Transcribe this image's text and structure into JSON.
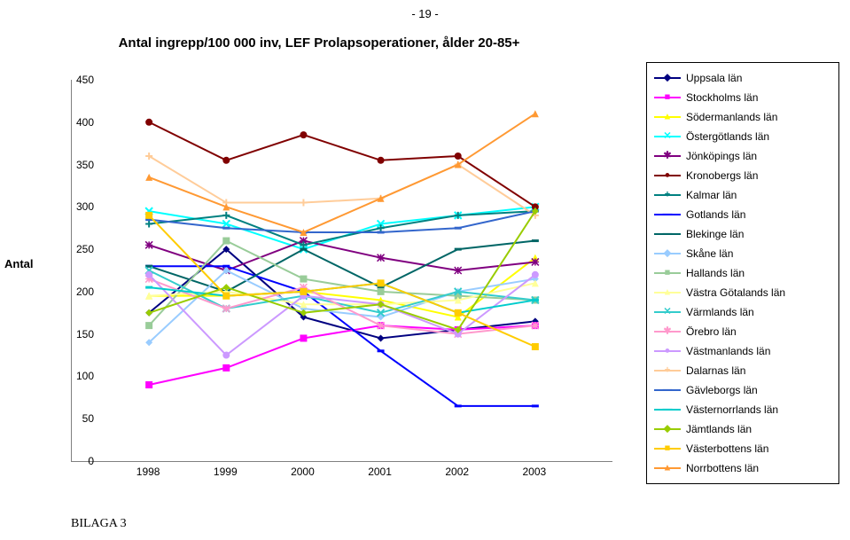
{
  "page_number": "- 19 -",
  "chart": {
    "type": "line",
    "title": "Antal ingrepp/100 000 inv, LEF Prolapsoperationer, ålder 20-85+",
    "ylabel": "Antal",
    "ylim": [
      0,
      450
    ],
    "ytick_step": 50,
    "yticks": [
      0,
      50,
      100,
      150,
      200,
      250,
      300,
      350,
      400,
      450
    ],
    "xcategories": [
      "1998",
      "1999",
      "2000",
      "2001",
      "2002",
      "2003"
    ],
    "background_color": "#ffffff",
    "axis_color": "#808080",
    "line_width": 2,
    "marker_size": 6,
    "series": [
      {
        "name": "Uppsala län",
        "color": "#000080",
        "marker": "diamond",
        "values": [
          175,
          250,
          170,
          145,
          155,
          165
        ]
      },
      {
        "name": "Stockholms län",
        "color": "#ff00ff",
        "marker": "square",
        "values": [
          90,
          110,
          145,
          160,
          155,
          160
        ]
      },
      {
        "name": "Södermanlands län",
        "color": "#ffff00",
        "marker": "triangle",
        "values": [
          195,
          195,
          200,
          190,
          170,
          240
        ]
      },
      {
        "name": "Östergötlands län",
        "color": "#00ffff",
        "marker": "x",
        "values": [
          295,
          280,
          250,
          280,
          290,
          300
        ]
      },
      {
        "name": "Jönköpings län",
        "color": "#800080",
        "marker": "star",
        "values": [
          255,
          225,
          260,
          240,
          225,
          235
        ]
      },
      {
        "name": "Kronobergs län",
        "color": "#800000",
        "marker": "circle",
        "values": [
          400,
          355,
          385,
          355,
          360,
          300
        ]
      },
      {
        "name": "Kalmar län",
        "color": "#008080",
        "marker": "plus",
        "values": [
          280,
          290,
          255,
          275,
          290,
          295
        ]
      },
      {
        "name": "Gotlands län",
        "color": "#0000ff",
        "marker": "dash",
        "values": [
          230,
          230,
          200,
          130,
          65,
          65
        ]
      },
      {
        "name": "Blekinge län",
        "color": "#006666",
        "marker": "dash",
        "values": [
          230,
          200,
          250,
          205,
          250,
          260
        ]
      },
      {
        "name": "Skåne län",
        "color": "#99ccff",
        "marker": "diamond",
        "values": [
          140,
          225,
          180,
          170,
          200,
          215
        ]
      },
      {
        "name": "Hallands län",
        "color": "#99cc99",
        "marker": "square",
        "values": [
          160,
          260,
          215,
          200,
          195,
          190
        ]
      },
      {
        "name": "Västra Götalands län",
        "color": "#ffff99",
        "marker": "triangle",
        "values": [
          195,
          200,
          185,
          185,
          190,
          210
        ]
      },
      {
        "name": "Värmlands län",
        "color": "#33cccc",
        "marker": "x",
        "values": [
          225,
          180,
          195,
          175,
          200,
          190
        ]
      },
      {
        "name": "Örebro län",
        "color": "#ff99cc",
        "marker": "star",
        "values": [
          215,
          180,
          205,
          160,
          150,
          160
        ]
      },
      {
        "name": "Västmanlands län",
        "color": "#cc99ff",
        "marker": "circle",
        "values": [
          220,
          125,
          195,
          185,
          150,
          220
        ]
      },
      {
        "name": "Dalarnas län",
        "color": "#ffcc99",
        "marker": "plus",
        "values": [
          360,
          305,
          305,
          310,
          350,
          290
        ]
      },
      {
        "name": "Gävleborgs län",
        "color": "#3366cc",
        "marker": "dash",
        "values": [
          285,
          275,
          270,
          270,
          275,
          295
        ]
      },
      {
        "name": "Västernorrlands län",
        "color": "#00cccc",
        "marker": "dash",
        "values": [
          205,
          195,
          200,
          210,
          175,
          190
        ]
      },
      {
        "name": "Jämtlands län",
        "color": "#99cc00",
        "marker": "diamond",
        "values": [
          175,
          205,
          175,
          185,
          155,
          295
        ]
      },
      {
        "name": "Västerbottens län",
        "color": "#ffcc00",
        "marker": "square",
        "values": [
          290,
          195,
          200,
          210,
          175,
          135
        ]
      },
      {
        "name": "Norrbottens län",
        "color": "#ff9933",
        "marker": "triangle",
        "values": [
          335,
          300,
          270,
          310,
          350,
          410
        ]
      }
    ]
  },
  "footer": "BILAGA 3"
}
